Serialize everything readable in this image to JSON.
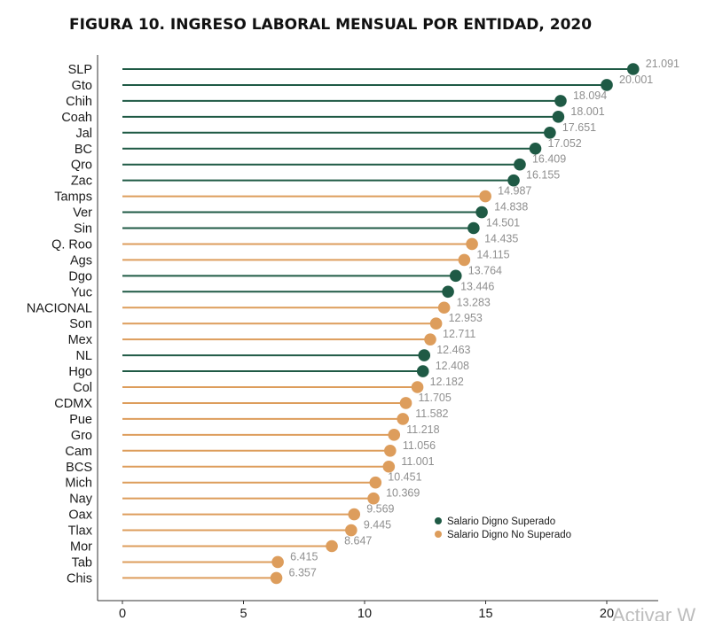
{
  "title": "FIGURA 10. INGRESO LABORAL MENSUAL POR ENTIDAD, 2020",
  "watermark": "Activar W",
  "colors": {
    "superado": "#1f5a45",
    "no_superado": "#dd9d5c"
  },
  "chart_data": {
    "type": "lollipop",
    "xlim": [
      0,
      21.5
    ],
    "xticks": [
      0,
      5,
      10,
      15,
      20
    ],
    "xlabel": "",
    "ylabel": "",
    "grid": false,
    "legend_position": "inside-right",
    "legend": [
      {
        "key": "superado",
        "label": "Salario Digno Superado"
      },
      {
        "key": "no_superado",
        "label": "Salario Digno No Superado"
      }
    ],
    "points": [
      {
        "category": "SLP",
        "value": 21.091,
        "label": "21.091",
        "group": "superado"
      },
      {
        "category": "Gto",
        "value": 20.001,
        "label": "20.001",
        "group": "superado"
      },
      {
        "category": "Chih",
        "value": 18.094,
        "label": "18.094",
        "group": "superado"
      },
      {
        "category": "Coah",
        "value": 18.001,
        "label": "18.001",
        "group": "superado"
      },
      {
        "category": "Jal",
        "value": 17.651,
        "label": "17.651",
        "group": "superado"
      },
      {
        "category": "BC",
        "value": 17.052,
        "label": "17.052",
        "group": "superado"
      },
      {
        "category": "Qro",
        "value": 16.409,
        "label": "16.409",
        "group": "superado"
      },
      {
        "category": "Zac",
        "value": 16.155,
        "label": "16.155",
        "group": "superado"
      },
      {
        "category": "Tamps",
        "value": 14.987,
        "label": "14.987",
        "group": "no_superado"
      },
      {
        "category": "Ver",
        "value": 14.838,
        "label": "14.838",
        "group": "superado"
      },
      {
        "category": "Sin",
        "value": 14.501,
        "label": "14.501",
        "group": "superado"
      },
      {
        "category": "Q. Roo",
        "value": 14.435,
        "label": "14.435",
        "group": "no_superado"
      },
      {
        "category": "Ags",
        "value": 14.115,
        "label": "14.115",
        "group": "no_superado"
      },
      {
        "category": "Dgo",
        "value": 13.764,
        "label": "13.764",
        "group": "superado"
      },
      {
        "category": "Yuc",
        "value": 13.446,
        "label": "13.446",
        "group": "superado"
      },
      {
        "category": "NACIONAL",
        "value": 13.283,
        "label": "13.283",
        "group": "no_superado"
      },
      {
        "category": "Son",
        "value": 12.953,
        "label": "12.953",
        "group": "no_superado"
      },
      {
        "category": "Mex",
        "value": 12.711,
        "label": "12.711",
        "group": "no_superado"
      },
      {
        "category": "NL",
        "value": 12.463,
        "label": "12.463",
        "group": "superado"
      },
      {
        "category": "Hgo",
        "value": 12.408,
        "label": "12.408",
        "group": "superado"
      },
      {
        "category": "Col",
        "value": 12.182,
        "label": "12.182",
        "group": "no_superado"
      },
      {
        "category": "CDMX",
        "value": 11.705,
        "label": "11.705",
        "group": "no_superado"
      },
      {
        "category": "Pue",
        "value": 11.582,
        "label": "11.582",
        "group": "no_superado"
      },
      {
        "category": "Gro",
        "value": 11.218,
        "label": "11.218",
        "group": "no_superado"
      },
      {
        "category": "Cam",
        "value": 11.056,
        "label": "11.056",
        "group": "no_superado"
      },
      {
        "category": "BCS",
        "value": 11.001,
        "label": "11.001",
        "group": "no_superado"
      },
      {
        "category": "Mich",
        "value": 10.451,
        "label": "10.451",
        "group": "no_superado"
      },
      {
        "category": "Nay",
        "value": 10.369,
        "label": "10.369",
        "group": "no_superado"
      },
      {
        "category": "Oax",
        "value": 9.569,
        "label": "9.569",
        "group": "no_superado"
      },
      {
        "category": "Tlax",
        "value": 9.445,
        "label": "9.445",
        "group": "no_superado"
      },
      {
        "category": "Mor",
        "value": 8.647,
        "label": "8.647",
        "group": "no_superado"
      },
      {
        "category": "Tab",
        "value": 6.415,
        "label": "6.415",
        "group": "no_superado"
      },
      {
        "category": "Chis",
        "value": 6.357,
        "label": "6.357",
        "group": "no_superado"
      }
    ]
  }
}
